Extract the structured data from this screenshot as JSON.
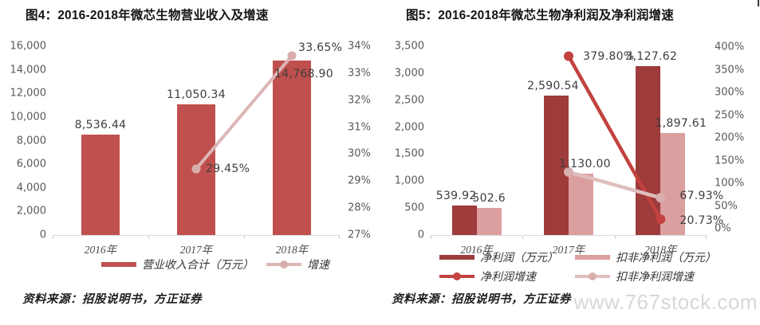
{
  "watermark": "www.767stock.com",
  "chart_data": [
    {
      "type": "combo_bar_line",
      "title": "图4：2016-2018年微芯生物营业收入及增速",
      "source": "资料来源：招股说明书，方正证券",
      "categories": [
        "2016年",
        "2017年",
        "2018年"
      ],
      "left_axis": {
        "min": 0,
        "max": 16000,
        "step": 2000,
        "ticks": [
          "16,000",
          "14,000",
          "12,000",
          "10,000",
          "8,000",
          "6,000",
          "4,000",
          "2,000",
          "0"
        ]
      },
      "right_axis": {
        "min": 27,
        "max": 34,
        "step": 1,
        "unit": "%",
        "ticks": [
          "34%",
          "33%",
          "32%",
          "31%",
          "30%",
          "29%",
          "28%",
          "27%"
        ]
      },
      "series": [
        {
          "name": "营业收入合计（万元）",
          "kind": "bar",
          "axis": "left",
          "color": "#c0504e",
          "values": [
            8536.44,
            11050.34,
            14768.9
          ],
          "labels": [
            "8,536.44",
            "11,050.34",
            "14,768.90"
          ]
        },
        {
          "name": "增速",
          "kind": "line",
          "axis": "right",
          "color": "#dcb6b5",
          "marker_color": "#d8aead",
          "values": [
            null,
            29.45,
            33.65
          ],
          "labels": [
            null,
            "29.45%",
            "33.65%"
          ]
        }
      ],
      "legend_position": "bottom",
      "grid": false
    },
    {
      "type": "combo_bar_line",
      "title": "图5：2016-2018年微芯生物净利润及净利润增速",
      "source": "资料来源：招股说明书，方正证券",
      "categories": [
        "2016年",
        "2017年",
        "2018年"
      ],
      "left_axis": {
        "min": 0,
        "max": 3500,
        "step": 500,
        "ticks": [
          "3,500",
          "3,000",
          "2,500",
          "2,000",
          "1,500",
          "1,000",
          "500",
          "0"
        ]
      },
      "right_axis": {
        "min": 0,
        "max": 400,
        "step": 50,
        "unit": "%",
        "ticks": [
          "400%",
          "350%",
          "300%",
          "250%",
          "200%",
          "150%",
          "100%",
          "50%",
          "0%"
        ]
      },
      "series": [
        {
          "name": "净利润（万元）",
          "kind": "bar",
          "axis": "left",
          "color": "#9e3b3b",
          "values": [
            539.92,
            2590.54,
            3127.62
          ],
          "labels": [
            "539.92",
            "2,590.54",
            "3,127.62"
          ]
        },
        {
          "name": "扣非净利润（万元）",
          "kind": "bar",
          "axis": "left",
          "color": "#dc9fa0",
          "values": [
            502.6,
            1130.0,
            1897.61
          ],
          "labels": [
            "502.6",
            "1,130.00",
            "1,897.61"
          ]
        },
        {
          "name": "净利润增速",
          "kind": "line",
          "axis": "right",
          "color": "#c2423e",
          "marker_color": "#c2423e",
          "values": [
            null,
            379.8,
            20.73
          ],
          "labels": [
            null,
            "379.80%",
            "20.73%"
          ]
        },
        {
          "name": "扣非净利润增速",
          "kind": "line",
          "axis": "right",
          "color": "#dfbfbe",
          "marker_color": "#d8aeae",
          "values": [
            null,
            124.85,
            67.93
          ],
          "labels": [
            null,
            null,
            "67.93%"
          ]
        }
      ],
      "legend_position": "bottom",
      "grid": false
    }
  ]
}
